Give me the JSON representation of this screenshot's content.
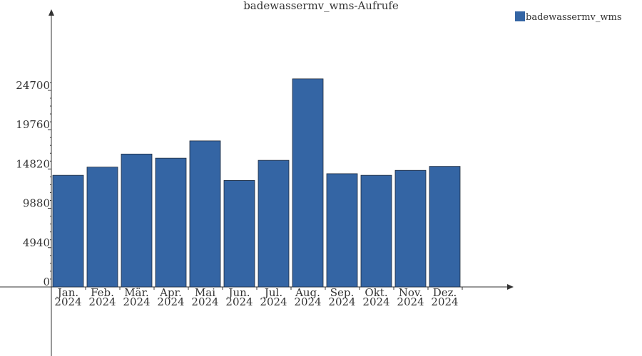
{
  "chart_data": {
    "type": "bar",
    "title": "badewassermv_wms-Aufrufe",
    "xlabel": "",
    "ylabel": "",
    "categories": [
      [
        "Jan.",
        "2024"
      ],
      [
        "Feb.",
        "2024"
      ],
      [
        "Mär.",
        "2024"
      ],
      [
        "Apr.",
        "2024"
      ],
      [
        "Mai",
        "2024"
      ],
      [
        "Jun.",
        "2024"
      ],
      [
        "Jul.",
        "2024"
      ],
      [
        "Aug.",
        "2024"
      ],
      [
        "Sep.",
        "2024"
      ],
      [
        "Okt.",
        "2024"
      ],
      [
        "Nov.",
        "2024"
      ],
      [
        "Dez.",
        "2024"
      ]
    ],
    "series": [
      {
        "name": "badewassermv_wms",
        "color": "#3465a4",
        "values": [
          14030,
          15060,
          16700,
          16180,
          18350,
          13380,
          15910,
          26140,
          14230,
          14030,
          14650,
          15150
        ]
      }
    ],
    "yticks": [
      0,
      4940,
      9880,
      14820,
      19760,
      24700
    ],
    "ylim": [
      0,
      33100
    ],
    "grid": false,
    "legend": "top-right"
  }
}
